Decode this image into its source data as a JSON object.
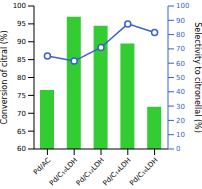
{
  "chart_data": {
    "type": "bar",
    "categories": [
      "Pd/AC",
      "Pd/C₁₀LDH",
      "Pd/C₁₂LDH",
      "Pd/C₁₄LDH",
      "Pd/C₁₆LDH"
    ],
    "y_label": "Conversion of citral (%)",
    "y2_label": "Selectivity to citronellal (%)",
    "ylim": [
      60,
      100
    ],
    "yticks": [
      60,
      65,
      70,
      75,
      80,
      85,
      90,
      95,
      100
    ],
    "y2lim": [
      0,
      100
    ],
    "y2ticks": [
      0,
      10,
      20,
      30,
      40,
      50,
      60,
      70,
      80,
      90,
      100
    ],
    "series": [
      {
        "type": "bar",
        "color": "#33cc33",
        "values": [
          76.5,
          97,
          94.5,
          89.5,
          71.8
        ]
      },
      {
        "type": "line",
        "axis": "y2",
        "color": "#3a5fcd",
        "marker": "circle",
        "values": [
          65,
          61.5,
          71,
          87.5,
          81.5
        ]
      }
    ]
  }
}
